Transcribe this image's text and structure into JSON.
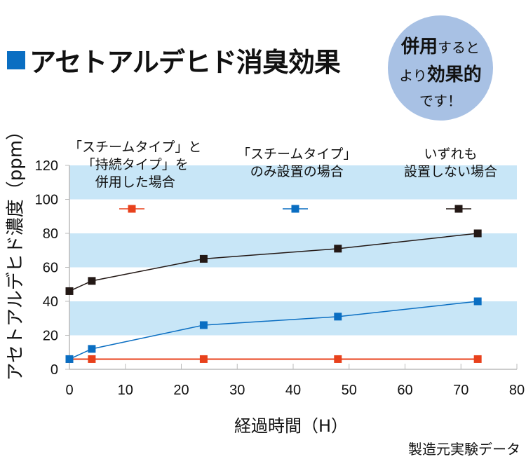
{
  "title": "アセトアルデヒド消臭効果",
  "accent": "#0a6ec2",
  "badge": {
    "line1_bold": "併用",
    "line1": "すると",
    "line2": "より",
    "line2_bold": "効果的",
    "line3": "です！",
    "color": "#a8c1e4"
  },
  "footnote": "製造元実験データ",
  "chart_data": {
    "type": "line",
    "xlabel": "経過時間（H）",
    "ylabel": "アセトアルデヒド濃度（ppm）",
    "xlim": [
      0,
      80
    ],
    "ylim": [
      0,
      120
    ],
    "xticks": [
      0,
      10,
      20,
      30,
      40,
      50,
      60,
      70,
      80
    ],
    "yticks": [
      0,
      20,
      40,
      60,
      80,
      100,
      120
    ],
    "bands": [
      [
        20,
        40
      ],
      [
        60,
        80
      ],
      [
        100,
        120
      ]
    ],
    "band_color": "#c8e6f7",
    "legend_placement": "top",
    "x": [
      0,
      4,
      24,
      48,
      73
    ],
    "series": [
      {
        "name": "「スチームタイプ」と「持続タイプ」を併用した場合",
        "name_lines": [
          "「スチームタイプ」と",
          "「持続タイプ」を",
          "併用した場合"
        ],
        "color": "#e8411c",
        "values": [
          6,
          6,
          6,
          6,
          6
        ]
      },
      {
        "name": "「スチームタイプ」のみ設置の場合",
        "name_lines": [
          "「スチームタイプ」",
          "のみ設置の場合"
        ],
        "color": "#0a6ec2",
        "values": [
          6,
          12,
          26,
          31,
          40
        ]
      },
      {
        "name": "いずれも設置しない場合",
        "name_lines": [
          "いずれも",
          "設置しない場合"
        ],
        "color": "#231815",
        "values": [
          46,
          52,
          65,
          71,
          80
        ]
      }
    ]
  }
}
